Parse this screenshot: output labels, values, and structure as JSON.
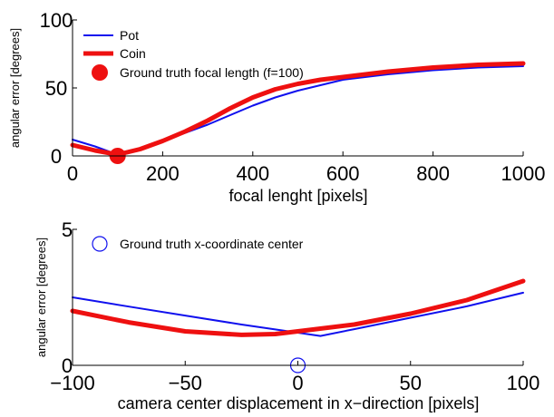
{
  "colors": {
    "pot": "#1010ee",
    "coin": "#ee1010",
    "axis": "#000000"
  },
  "chart_data": [
    {
      "type": "line",
      "xlabel": "focal lenght [pixels]",
      "ylabel": "angular error [degrees]",
      "xlim": [
        0,
        1000
      ],
      "ylim": [
        0,
        100
      ],
      "xticks": [
        0,
        200,
        400,
        600,
        800,
        1000
      ],
      "xtick_labels": [
        "0",
        "200",
        "400",
        "600",
        "800",
        "1000"
      ],
      "yticks": [
        0,
        50,
        100
      ],
      "ytick_labels": [
        "0",
        "50",
        "100"
      ],
      "legend_position": "top-left",
      "series": [
        {
          "name": "Pot",
          "color": "#1010ee",
          "x": [
            0,
            50,
            100,
            150,
            200,
            250,
            300,
            350,
            400,
            450,
            500,
            550,
            600,
            700,
            800,
            900,
            1000
          ],
          "y": [
            12,
            7,
            1,
            5,
            11,
            17,
            23,
            30,
            37,
            43,
            48,
            52,
            56,
            60,
            63,
            65,
            66
          ]
        },
        {
          "name": "Coin",
          "color": "#ee1010",
          "x": [
            0,
            50,
            100,
            150,
            200,
            250,
            300,
            350,
            400,
            450,
            500,
            550,
            600,
            700,
            800,
            900,
            1000
          ],
          "y": [
            8,
            4,
            1,
            5,
            11,
            18,
            26,
            35,
            43,
            49,
            53,
            56,
            58,
            62,
            65,
            67,
            68
          ]
        }
      ],
      "markers": [
        {
          "name": "Ground truth focal length (f=100)",
          "x": 100,
          "y": 0,
          "style": "filled-circle",
          "color": "#ee1010"
        }
      ]
    },
    {
      "type": "line",
      "xlabel": "camera center displacement in x−direction [pixels]",
      "ylabel": "angular error [degrees]",
      "xlim": [
        -100,
        100
      ],
      "ylim": [
        0,
        5
      ],
      "xticks": [
        -100,
        -50,
        0,
        50,
        100
      ],
      "xtick_labels": [
        "−100",
        "−50",
        "0",
        "50",
        "100"
      ],
      "yticks": [
        0,
        5
      ],
      "ytick_labels": [
        "0",
        "5"
      ],
      "legend_position": "top-left",
      "series": [
        {
          "name": "Pot",
          "color": "#1010ee",
          "x": [
            -100,
            -75,
            -50,
            -25,
            0,
            10,
            25,
            50,
            75,
            100
          ],
          "y": [
            2.5,
            2.16,
            1.83,
            1.5,
            1.2,
            1.08,
            1.33,
            1.75,
            2.17,
            2.67
          ]
        },
        {
          "name": "Coin",
          "color": "#ee1010",
          "x": [
            -100,
            -75,
            -50,
            -25,
            -10,
            0,
            25,
            50,
            75,
            100
          ],
          "y": [
            2.0,
            1.58,
            1.25,
            1.12,
            1.15,
            1.25,
            1.5,
            1.9,
            2.4,
            3.1
          ]
        }
      ],
      "markers": [
        {
          "name": "Ground truth x-coordinate center",
          "x": 0,
          "y": 0,
          "style": "open-circle",
          "color": "#1010ee"
        }
      ]
    }
  ]
}
